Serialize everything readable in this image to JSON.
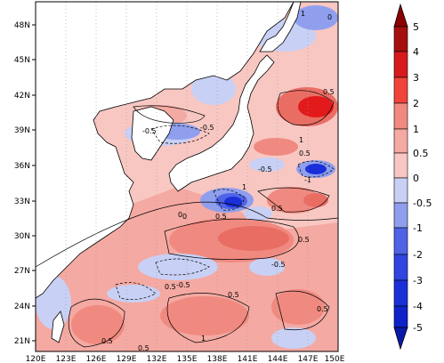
{
  "map": {
    "lat_labels": [
      "48N",
      "45N",
      "42N",
      "39N",
      "36N",
      "33N",
      "30N",
      "27N",
      "24N",
      "21N"
    ],
    "lon_labels": [
      "120E",
      "123E",
      "126E",
      "129E",
      "132E",
      "135E",
      "138E",
      "141E",
      "144E",
      "147E",
      "150E"
    ],
    "contour_labels": [
      "-0.5",
      "-0.5",
      "0.5",
      "1",
      "0.5",
      "-1",
      "-0.5",
      "1",
      "0.5",
      "0",
      "0.5",
      "-0.5",
      "0.5",
      "0.5",
      "-0.5",
      "0.5",
      "1",
      "0.5",
      "0.5",
      "0.5",
      "1",
      "0",
      "0"
    ],
    "colors": {
      "dark_red": "#8b0000",
      "red": "#e31a1c",
      "mid_red": "#f0443a",
      "light_red": "#f08a80",
      "pale_red": "#f8c7c2",
      "pale_blue": "#c8d0f5",
      "light_blue": "#8f9fee",
      "mid_blue": "#4f63e6",
      "blue": "#1a2fd8",
      "dark_blue": "#0a1aa8",
      "land": "#ffffff",
      "coast": "#000000"
    }
  },
  "colorbar": {
    "labels": [
      "5",
      "4",
      "3",
      "2",
      "1",
      "0.5",
      "0",
      "-0.5",
      "-1",
      "-2",
      "-3",
      "-4",
      "-5"
    ]
  }
}
